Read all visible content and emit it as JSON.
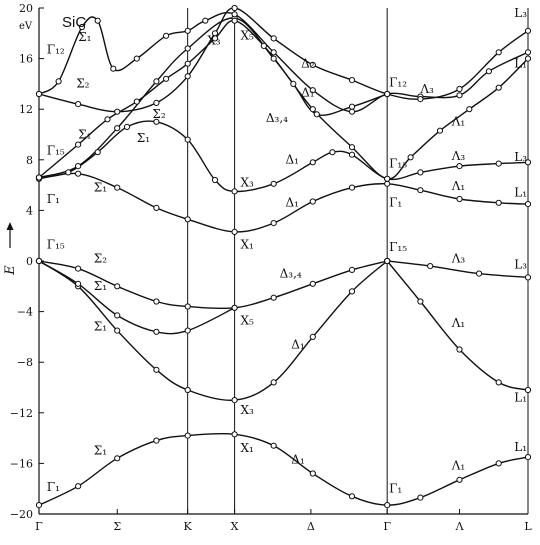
{
  "chart_data": {
    "type": "line",
    "title": "SiC",
    "unit_label": "eV",
    "ylabel": "E",
    "ylim": [
      -20,
      20
    ],
    "y_ticks": [
      -20,
      -16,
      -12,
      -8,
      -4,
      0,
      4,
      8,
      12,
      16,
      20
    ],
    "k_points": [
      {
        "label": "Γ",
        "k": 0
      },
      {
        "label": "Σ",
        "k": 0.4
      },
      {
        "label": "K",
        "k": 0.76
      },
      {
        "label": "X",
        "k": 1.0
      },
      {
        "label": "Δ",
        "k": 1.39
      },
      {
        "label": "Γ",
        "k": 1.78
      },
      {
        "label": "Λ",
        "k": 2.15
      },
      {
        "label": "L",
        "k": 2.5
      }
    ],
    "dividers": [
      0.76,
      1.0,
      1.78
    ],
    "series": [
      {
        "values": [
          [
            0,
            -19.3
          ],
          [
            0.2,
            -17.8
          ],
          [
            0.4,
            -15.6
          ],
          [
            0.6,
            -14.2
          ],
          [
            0.76,
            -13.8
          ],
          [
            1.0,
            -13.7
          ],
          [
            1.2,
            -14.6
          ],
          [
            1.4,
            -16.8
          ],
          [
            1.6,
            -18.6
          ],
          [
            1.78,
            -19.3
          ],
          [
            1.95,
            -18.7
          ],
          [
            2.15,
            -17.3
          ],
          [
            2.35,
            -16.0
          ],
          [
            2.5,
            -15.5
          ]
        ]
      },
      {
        "values": [
          [
            0,
            0
          ],
          [
            0.2,
            -2.0
          ],
          [
            0.4,
            -5.5
          ],
          [
            0.6,
            -8.6
          ],
          [
            0.76,
            -10.2
          ],
          [
            1.0,
            -11.0
          ],
          [
            1.2,
            -9.6
          ],
          [
            1.4,
            -6.0
          ],
          [
            1.6,
            -2.4
          ],
          [
            1.78,
            0
          ]
        ]
      },
      {
        "values": [
          [
            0,
            0
          ],
          [
            0.2,
            -1.8
          ],
          [
            0.4,
            -4.3
          ],
          [
            0.6,
            -5.6
          ],
          [
            0.76,
            -5.5
          ],
          [
            1.0,
            -3.7
          ]
        ]
      },
      {
        "values": [
          [
            0,
            0
          ],
          [
            0.2,
            -0.6
          ],
          [
            0.4,
            -2.0
          ],
          [
            0.6,
            -3.2
          ],
          [
            0.76,
            -3.6
          ],
          [
            1.0,
            -3.7
          ],
          [
            1.2,
            -2.9
          ],
          [
            1.4,
            -1.8
          ],
          [
            1.6,
            -0.7
          ],
          [
            1.78,
            0
          ]
        ]
      },
      {
        "values": [
          [
            1.78,
            0
          ],
          [
            1.95,
            -3.2
          ],
          [
            2.15,
            -7.0
          ],
          [
            2.35,
            -9.6
          ],
          [
            2.5,
            -10.2
          ]
        ]
      },
      {
        "values": [
          [
            1.78,
            0
          ],
          [
            2.0,
            -0.4
          ],
          [
            2.25,
            -1.0
          ],
          [
            2.5,
            -1.3
          ]
        ]
      },
      {
        "values": [
          [
            0,
            6.5
          ],
          [
            0.2,
            6.9
          ],
          [
            0.4,
            5.8
          ],
          [
            0.6,
            4.2
          ],
          [
            0.76,
            3.3
          ],
          [
            1.0,
            2.3
          ],
          [
            1.2,
            3.0
          ],
          [
            1.4,
            4.7
          ],
          [
            1.6,
            5.8
          ],
          [
            1.78,
            6.1
          ],
          [
            1.95,
            5.6
          ],
          [
            2.15,
            4.9
          ],
          [
            2.35,
            4.6
          ],
          [
            2.5,
            4.5
          ]
        ]
      },
      {
        "values": [
          [
            0,
            6.6
          ],
          [
            0.15,
            7.0
          ],
          [
            0.3,
            8.6
          ],
          [
            0.45,
            10.6
          ],
          [
            0.6,
            11.0
          ],
          [
            0.76,
            9.6
          ],
          [
            0.9,
            6.4
          ],
          [
            1.0,
            5.5
          ],
          [
            1.2,
            6.1
          ],
          [
            1.4,
            7.8
          ],
          [
            1.5,
            8.6
          ],
          [
            1.6,
            8.4
          ],
          [
            1.78,
            6.5
          ],
          [
            1.95,
            7.0
          ],
          [
            2.15,
            7.5
          ],
          [
            2.35,
            7.7
          ],
          [
            2.5,
            7.8
          ]
        ]
      },
      {
        "values": [
          [
            0,
            6.6
          ],
          [
            0.2,
            7.5
          ],
          [
            0.4,
            10.5
          ],
          [
            0.6,
            14.2
          ],
          [
            0.76,
            16.8
          ],
          [
            1.0,
            19.2
          ],
          [
            1.2,
            16.0
          ],
          [
            1.4,
            12.0
          ],
          [
            1.6,
            9.0
          ],
          [
            1.78,
            6.5
          ],
          [
            1.9,
            8.2
          ],
          [
            2.05,
            10.3
          ],
          [
            2.2,
            12.0
          ],
          [
            2.35,
            13.7
          ],
          [
            2.5,
            16.0
          ]
        ]
      },
      {
        "values": [
          [
            0,
            13.2
          ],
          [
            0.1,
            14.2
          ],
          [
            0.22,
            18.5
          ],
          [
            0.3,
            19.0
          ],
          [
            0.38,
            15.2
          ],
          [
            0.5,
            16.0
          ],
          [
            0.65,
            17.8
          ],
          [
            0.76,
            18.2
          ],
          [
            0.85,
            19.0
          ],
          [
            1.0,
            19.5
          ],
          [
            1.2,
            16.5
          ],
          [
            1.4,
            13.5
          ],
          [
            1.6,
            11.8
          ],
          [
            1.78,
            13.2
          ],
          [
            1.95,
            13.0
          ],
          [
            2.15,
            13.1
          ],
          [
            2.3,
            15.0
          ],
          [
            2.5,
            16.5
          ]
        ]
      },
      {
        "values": [
          [
            0,
            13.2
          ],
          [
            0.2,
            12.4
          ],
          [
            0.4,
            11.8
          ],
          [
            0.6,
            12.5
          ],
          [
            0.76,
            14.6
          ],
          [
            0.9,
            18.0
          ],
          [
            1.0,
            20.0
          ],
          [
            1.2,
            17.6
          ],
          [
            1.4,
            15.5
          ],
          [
            1.6,
            14.3
          ],
          [
            1.78,
            13.2
          ],
          [
            1.95,
            12.8
          ],
          [
            2.15,
            13.6
          ],
          [
            2.35,
            16.5
          ],
          [
            2.5,
            18.2
          ]
        ]
      },
      {
        "values": [
          [
            0,
            6.6
          ],
          [
            0.2,
            9.2
          ],
          [
            0.35,
            11.2
          ],
          [
            0.5,
            12.6
          ],
          [
            0.65,
            14.4
          ],
          [
            0.76,
            15.6
          ],
          [
            0.9,
            17.6
          ],
          [
            1.0,
            19.0
          ],
          [
            1.15,
            17.0
          ],
          [
            1.3,
            14.0
          ],
          [
            1.42,
            11.6
          ],
          [
            1.6,
            12.2
          ],
          [
            1.78,
            13.2
          ]
        ]
      }
    ],
    "annotations": [
      {
        "text": "Σ₁",
        "k": 0.2,
        "e": 17.4
      },
      {
        "text": "Σ₂",
        "k": 0.19,
        "e": 13.7
      },
      {
        "text": "Σ₁",
        "k": 0.2,
        "e": 9.7
      },
      {
        "text": "Σ₂",
        "k": 0.58,
        "e": 11.3
      },
      {
        "text": "Σ₁",
        "k": 0.5,
        "e": 9.4
      },
      {
        "text": "Σ₁",
        "k": 0.28,
        "e": 5.5
      },
      {
        "text": "Σ₂",
        "k": 0.28,
        "e": -0.1
      },
      {
        "text": "Σ₁",
        "k": 0.28,
        "e": -2.3
      },
      {
        "text": "Σ₁",
        "k": 0.28,
        "e": -5.5
      },
      {
        "text": "Σ₁",
        "k": 0.28,
        "e": -15.3
      },
      {
        "text": "Γ₁₂",
        "k": 0.04,
        "e": 16.4
      },
      {
        "text": "Γ₁₅",
        "k": 0.04,
        "e": 8.4
      },
      {
        "text": "Γ₁",
        "k": 0.04,
        "e": 4.6
      },
      {
        "text": "Γ₁₅",
        "k": 0.04,
        "e": 1.0
      },
      {
        "text": "Γ₁",
        "k": 0.04,
        "e": -18.2
      },
      {
        "text": "X₃",
        "k": 0.86,
        "e": 17.1
      },
      {
        "text": "X₅",
        "k": 1.03,
        "e": 17.5
      },
      {
        "text": "X₃",
        "k": 1.03,
        "e": 5.9
      },
      {
        "text": "X₁",
        "k": 1.03,
        "e": 1.0
      },
      {
        "text": "X₅",
        "k": 1.03,
        "e": -5.0
      },
      {
        "text": "X₃",
        "k": 1.03,
        "e": -12.1
      },
      {
        "text": "X₁",
        "k": 1.03,
        "e": -15.1
      },
      {
        "text": "Δ₂",
        "k": 1.34,
        "e": 15.3
      },
      {
        "text": "Δ₁",
        "k": 1.34,
        "e": 13.0
      },
      {
        "text": "Δ₃,₄",
        "k": 1.16,
        "e": 11.0
      },
      {
        "text": "Δ₁",
        "k": 1.26,
        "e": 7.7
      },
      {
        "text": "Δ₁",
        "k": 1.26,
        "e": 4.3
      },
      {
        "text": "Δ₃,₄",
        "k": 1.23,
        "e": -1.3
      },
      {
        "text": "Δ₁",
        "k": 1.29,
        "e": -6.9
      },
      {
        "text": "Δ₁",
        "k": 1.29,
        "e": -16.0
      },
      {
        "text": "Γ₁₂",
        "k": 1.79,
        "e": 13.8
      },
      {
        "text": "Γ₁₅",
        "k": 1.79,
        "e": 7.4
      },
      {
        "text": "Γ₁",
        "k": 1.79,
        "e": 4.3
      },
      {
        "text": "Γ₁₅",
        "k": 1.79,
        "e": 0.8
      },
      {
        "text": "Γ₁",
        "k": 1.79,
        "e": -18.3
      },
      {
        "text": "Λ₃",
        "k": 1.95,
        "e": 13.3
      },
      {
        "text": "Λ₁",
        "k": 2.11,
        "e": 10.7
      },
      {
        "text": "Λ₃",
        "k": 2.11,
        "e": 8.0
      },
      {
        "text": "Λ₁",
        "k": 2.11,
        "e": 5.6
      },
      {
        "text": "Λ₃",
        "k": 2.11,
        "e": -0.1
      },
      {
        "text": "Λ₁",
        "k": 2.11,
        "e": -5.2
      },
      {
        "text": "Λ₁",
        "k": 2.11,
        "e": -16.5
      },
      {
        "text": "L₃",
        "k": 2.43,
        "e": 19.3
      },
      {
        "text": "L₁",
        "k": 2.43,
        "e": 15.3
      },
      {
        "text": "L₃",
        "k": 2.43,
        "e": 7.9
      },
      {
        "text": "L₁",
        "k": 2.43,
        "e": 5.1
      },
      {
        "text": "L₃",
        "k": 2.43,
        "e": -0.6
      },
      {
        "text": "L₁",
        "k": 2.43,
        "e": -11.1
      },
      {
        "text": "L₁",
        "k": 2.43,
        "e": -15.0
      }
    ]
  }
}
